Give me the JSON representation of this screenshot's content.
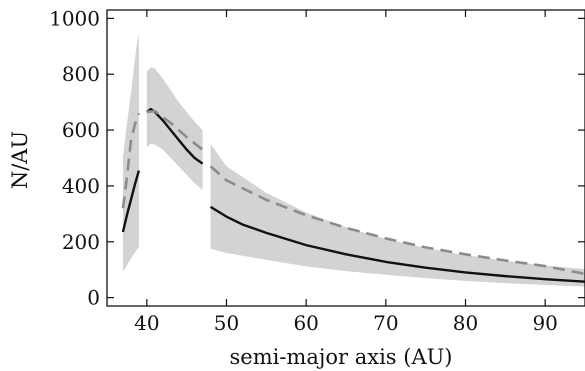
{
  "chart_data": {
    "type": "line",
    "xlabel": "semi-major axis (AU)",
    "ylabel": "N/AU",
    "xlim": [
      35,
      95
    ],
    "ylim": [
      -30,
      1030
    ],
    "x_ticks": [
      40,
      50,
      60,
      70,
      80,
      90
    ],
    "x_tick_labels": [
      "40",
      "50",
      "60",
      "70",
      "80",
      "90"
    ],
    "y_ticks": [
      0,
      200,
      400,
      600,
      800,
      1000
    ],
    "y_tick_labels": [
      "0",
      "200",
      "400",
      "600",
      "800",
      "1000"
    ],
    "grid": false,
    "colors": {
      "band": "#d3d3d3",
      "solid": "#111111",
      "dashed": "#8c8c8c"
    },
    "bands": [
      {
        "x": [
          37,
          37.4,
          38,
          38.7,
          39
        ],
        "lower": [
          95,
          110,
          140,
          170,
          180
        ],
        "upper": [
          500,
          600,
          730,
          900,
          945
        ]
      },
      {
        "x": [
          40,
          40.5,
          41,
          42,
          44,
          46,
          47
        ],
        "lower": [
          540,
          550,
          548,
          530,
          470,
          410,
          385
        ],
        "upper": [
          810,
          825,
          820,
          785,
          700,
          630,
          600
        ]
      },
      {
        "x": [
          48,
          50,
          55,
          60,
          65,
          70,
          75,
          80,
          85,
          90,
          95
        ],
        "lower": [
          175,
          160,
          135,
          112,
          95,
          82,
          70,
          60,
          52,
          45,
          40
        ],
        "upper": [
          550,
          470,
          375,
          305,
          252,
          210,
          178,
          152,
          132,
          115,
          102
        ]
      }
    ],
    "series": [
      {
        "style": "solid",
        "segments": [
          {
            "x": [
              37,
              37.5,
              38,
              38.5,
              39
            ],
            "y": [
              235,
              295,
              350,
              405,
              455
            ]
          },
          {
            "x": [
              40,
              40.5,
              41,
              42,
              43,
              44,
              45,
              46,
              47
            ],
            "y": [
              665,
              675,
              665,
              635,
              600,
              565,
              530,
              500,
              480
            ]
          },
          {
            "x": [
              48,
              50,
              52,
              55,
              60,
              65,
              70,
              75,
              80,
              85,
              90,
              95
            ],
            "y": [
              325,
              290,
              262,
              232,
              188,
              155,
              128,
              107,
              90,
              77,
              66,
              57
            ]
          }
        ]
      },
      {
        "style": "dashed",
        "segments": [
          {
            "x": [
              37,
              37.5,
              38,
              38.5,
              39
            ],
            "y": [
              320,
              430,
              560,
              620,
              660
            ]
          },
          {
            "x": [
              40,
              41,
              43,
              45,
              47
            ],
            "y": [
              665,
              668,
              625,
              575,
              530
            ]
          },
          {
            "x": [
              48,
              50,
              55,
              60,
              65,
              70,
              75,
              80,
              85,
              90,
              95
            ],
            "y": [
              470,
              420,
              350,
              295,
              250,
              212,
              180,
              155,
              133,
              113,
              85
            ]
          }
        ]
      }
    ]
  }
}
